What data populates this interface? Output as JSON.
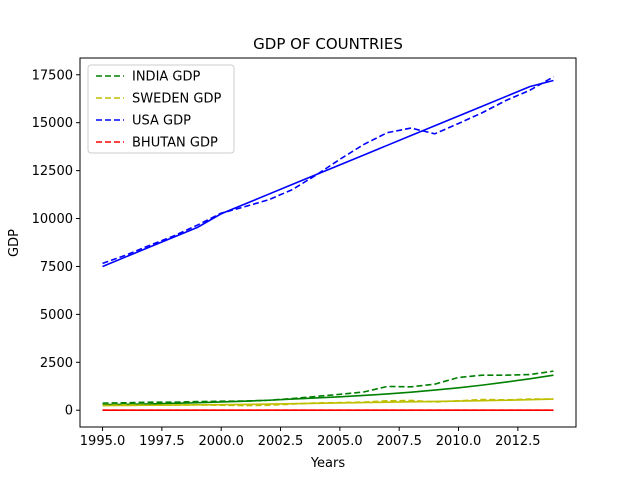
{
  "chart_data": {
    "type": "line",
    "title": "GDP OF COUNTRIES",
    "xlabel": "Years",
    "ylabel": "GDP",
    "xlim": [
      1994.05,
      2014.95
    ],
    "ylim": [
      -875,
      18375
    ],
    "x_ticks": [
      1995.0,
      1997.5,
      2000.0,
      2002.5,
      2005.0,
      2007.5,
      2010.0,
      2012.5
    ],
    "x_tick_labels": [
      "1995.0",
      "1997.5",
      "2000.0",
      "2002.5",
      "2005.0",
      "2007.5",
      "2010.0",
      "2012.5"
    ],
    "y_ticks": [
      0,
      2500,
      5000,
      7500,
      10000,
      12500,
      15000,
      17500
    ],
    "y_tick_labels": [
      "0",
      "2500",
      "5000",
      "7500",
      "10000",
      "12500",
      "15000",
      "17500"
    ],
    "grid": false,
    "legend_position": "top-left",
    "x": [
      1995,
      1996,
      1997,
      1998,
      1999,
      2000,
      2001,
      2002,
      2003,
      2004,
      2005,
      2006,
      2007,
      2008,
      2009,
      2010,
      2011,
      2012,
      2013,
      2014
    ],
    "series": [
      {
        "name": "INDIA GDP",
        "color": "#008000",
        "style": "dashed",
        "values": [
          370,
          390,
          420,
          420,
          450,
          470,
          480,
          520,
          610,
          720,
          830,
          950,
          1240,
          1220,
          1360,
          1710,
          1830,
          1830,
          1860,
          2040
        ]
      },
      {
        "name": "SWEDEN GDP",
        "color": "#bfbf00",
        "style": "dashed",
        "values": [
          250,
          280,
          260,
          270,
          280,
          260,
          240,
          260,
          320,
          380,
          400,
          420,
          490,
          510,
          430,
          490,
          560,
          540,
          580,
          580
        ]
      },
      {
        "name": "USA GDP",
        "color": "#0000ff",
        "style": "dashed",
        "values": [
          7660,
          8100,
          8610,
          9090,
          9660,
          10280,
          10620,
          10980,
          11510,
          12270,
          13090,
          13860,
          14480,
          14720,
          14420,
          14960,
          15520,
          16160,
          16690,
          17390
        ]
      },
      {
        "name": "BHUTAN GDP",
        "color": "#ff0000",
        "style": "dashed",
        "values": [
          1,
          1,
          1,
          1,
          1,
          1,
          1,
          1,
          1,
          1,
          1,
          1,
          2,
          2,
          2,
          2,
          2,
          2,
          2,
          2
        ]
      }
    ],
    "trend_lines": [
      {
        "color": "#008000",
        "values": [
          290,
          310,
          330,
          360,
          390,
          430,
          470,
          520,
          580,
          640,
          700,
          770,
          850,
          940,
          1050,
          1170,
          1310,
          1470,
          1640,
          1830
        ]
      },
      {
        "color": "#bfbf00",
        "values": [
          240,
          250,
          260,
          270,
          280,
          290,
          300,
          320,
          340,
          360,
          380,
          400,
          420,
          440,
          460,
          480,
          500,
          520,
          550,
          580
        ]
      },
      {
        "color": "#0000ff",
        "values": [
          7500,
          8010,
          8520,
          9030,
          9540,
          10250,
          10760,
          11270,
          11780,
          12290,
          12800,
          13310,
          13820,
          14330,
          14840,
          15350,
          15860,
          16370,
          16880,
          17200
        ]
      },
      {
        "color": "#ff0000",
        "values": [
          1,
          1,
          1,
          1,
          1,
          1,
          1,
          1,
          1,
          1,
          1,
          1,
          1,
          1,
          1,
          1,
          1,
          1,
          1,
          1
        ]
      }
    ]
  }
}
